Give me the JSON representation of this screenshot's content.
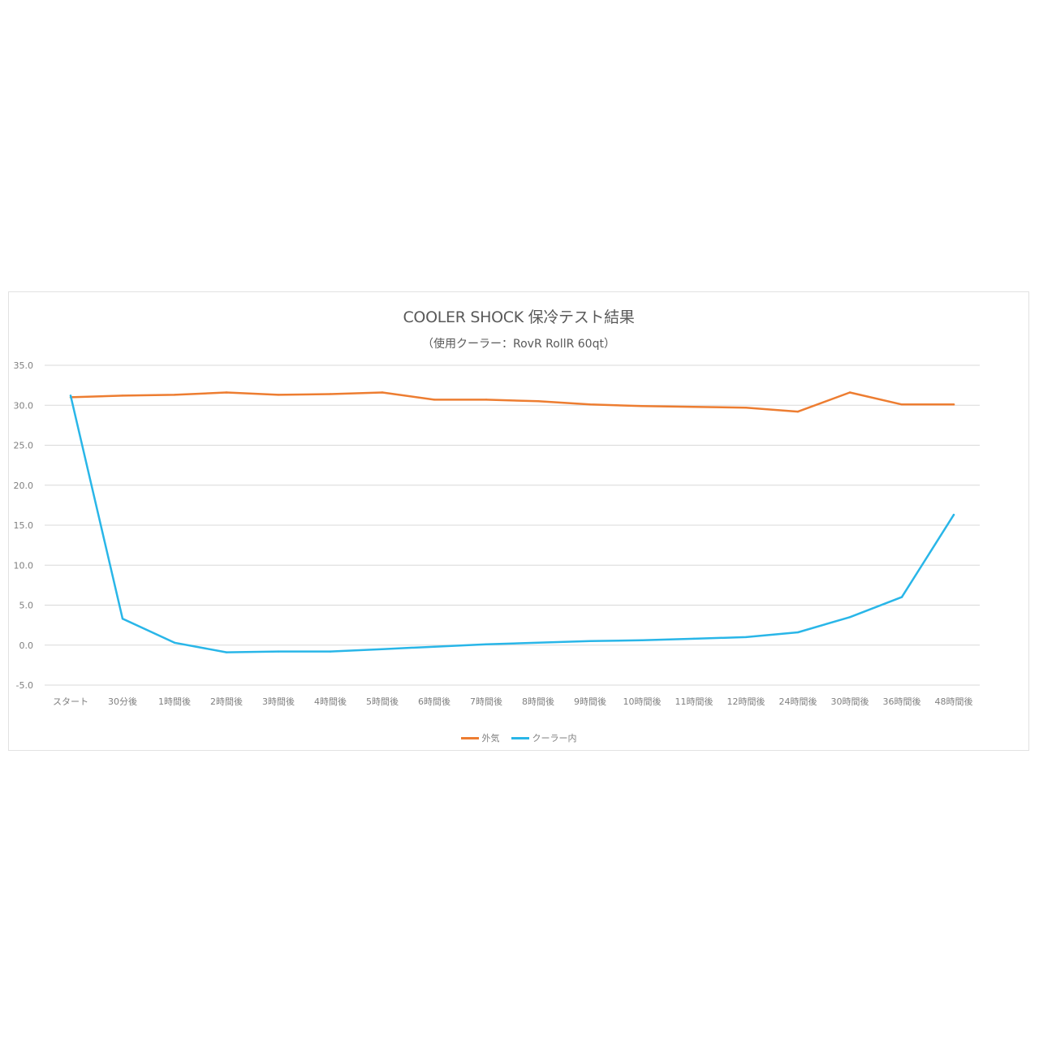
{
  "chart_data": {
    "type": "line",
    "title": "COOLER SHOCK 保冷テスト結果",
    "subtitle": "（使用クーラー：RovR RollR 60qt）",
    "categories": [
      "スタート",
      "30分後",
      "1時間後",
      "2時間後",
      "3時間後",
      "4時間後",
      "5時間後",
      "6時間後",
      "7時間後",
      "8時間後",
      "9時間後",
      "10時間後",
      "11時間後",
      "12時間後",
      "24時間後",
      "30時間後",
      "36時間後",
      "48時間後"
    ],
    "series": [
      {
        "name": "外気",
        "color": "#ED7D31",
        "values": [
          31.0,
          31.2,
          31.3,
          31.6,
          31.3,
          31.4,
          31.6,
          30.7,
          30.7,
          30.5,
          30.1,
          29.9,
          29.8,
          29.7,
          29.2,
          31.6,
          30.1,
          30.1
        ]
      },
      {
        "name": "クーラー内",
        "color": "#29B6E8",
        "values": [
          31.2,
          3.3,
          0.3,
          -0.9,
          -0.8,
          -0.8,
          -0.5,
          -0.2,
          0.1,
          0.3,
          0.5,
          0.6,
          0.8,
          1.0,
          1.6,
          3.5,
          6.0,
          16.3
        ]
      }
    ],
    "ylim": [
      -5,
      35
    ],
    "yticks": [
      "-5.0",
      "0.0",
      "5.0",
      "10.0",
      "15.0",
      "20.0",
      "25.0",
      "30.0",
      "35.0"
    ],
    "grid": true,
    "legend_position": "bottom"
  }
}
